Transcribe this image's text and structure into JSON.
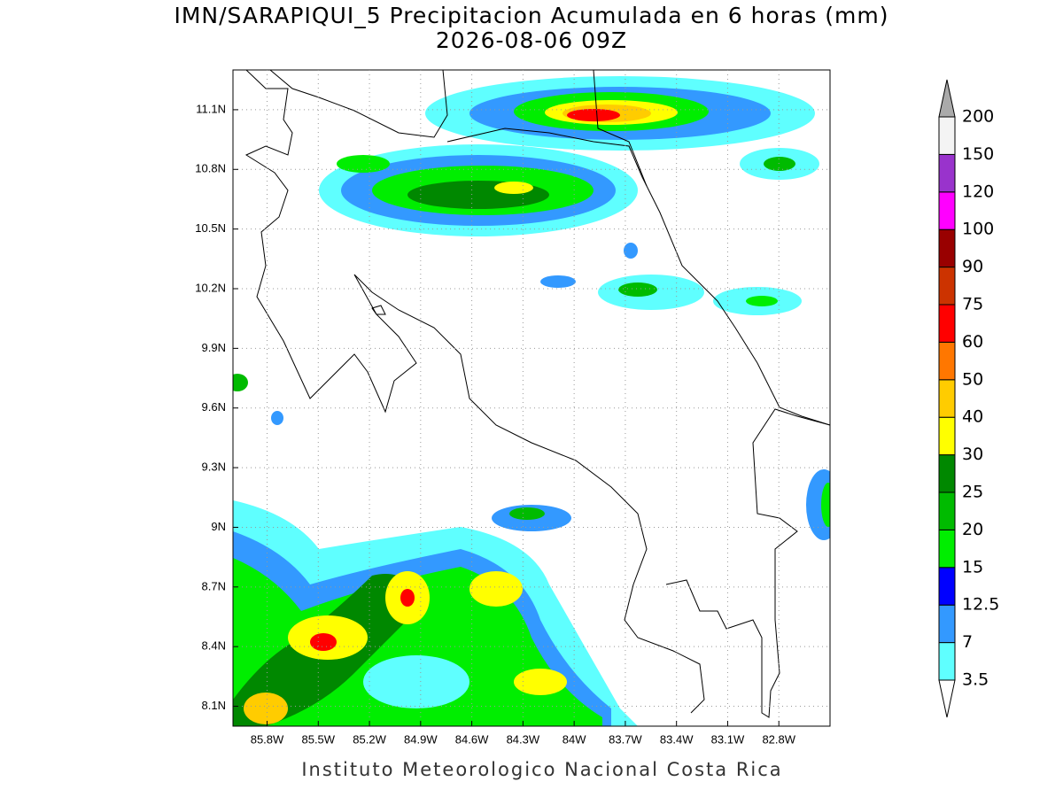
{
  "map": {
    "title": [
      "IMN/SARAPIQUI_5 Precipitacion Acumulada en 6 horas (mm)",
      "2026-08-06 09Z"
    ],
    "footer": "Instituto Meteorologico Nacional Costa Rica",
    "xlim": [
      -86.0,
      -82.5
    ],
    "ylim": [
      8.0,
      11.3
    ],
    "xticks": [
      {
        "value": -85.8,
        "label": "85.8W"
      },
      {
        "value": -85.5,
        "label": "85.5W"
      },
      {
        "value": -85.2,
        "label": "85.2W"
      },
      {
        "value": -84.9,
        "label": "84.9W"
      },
      {
        "value": -84.6,
        "label": "84.6W"
      },
      {
        "value": -84.3,
        "label": "84.3W"
      },
      {
        "value": -84.0,
        "label": "84W"
      },
      {
        "value": -83.7,
        "label": "83.7W"
      },
      {
        "value": -83.4,
        "label": "83.4W"
      },
      {
        "value": -83.1,
        "label": "83.1W"
      },
      {
        "value": -82.8,
        "label": "82.8W"
      }
    ],
    "yticks": [
      {
        "value": 8.1,
        "label": "8.1N"
      },
      {
        "value": 8.4,
        "label": "8.4N"
      },
      {
        "value": 8.7,
        "label": "8.7N"
      },
      {
        "value": 9.0,
        "label": "9N"
      },
      {
        "value": 9.3,
        "label": "9.3N"
      },
      {
        "value": 9.6,
        "label": "9.6N"
      },
      {
        "value": 9.9,
        "label": "9.9N"
      },
      {
        "value": 10.2,
        "label": "10.2N"
      },
      {
        "value": 10.5,
        "label": "10.5N"
      },
      {
        "value": 10.8,
        "label": "10.8N"
      },
      {
        "value": 11.1,
        "label": "11.1N"
      }
    ],
    "grid": true,
    "colorbar": {
      "levels": [
        3.5,
        7,
        12.5,
        15,
        20,
        25,
        30,
        40,
        50,
        60,
        75,
        90,
        100,
        120,
        150,
        200
      ],
      "colors": [
        "#ffffff",
        "#5fffff",
        "#3399ff",
        "#0000ff",
        "#00ee00",
        "#00bb00",
        "#008800",
        "#ffff00",
        "#ffcc00",
        "#ff7700",
        "#ff0000",
        "#cc3300",
        "#990000",
        "#ff00ff",
        "#9933cc",
        "#f4f4f4",
        "#aaaaaa"
      ]
    }
  }
}
